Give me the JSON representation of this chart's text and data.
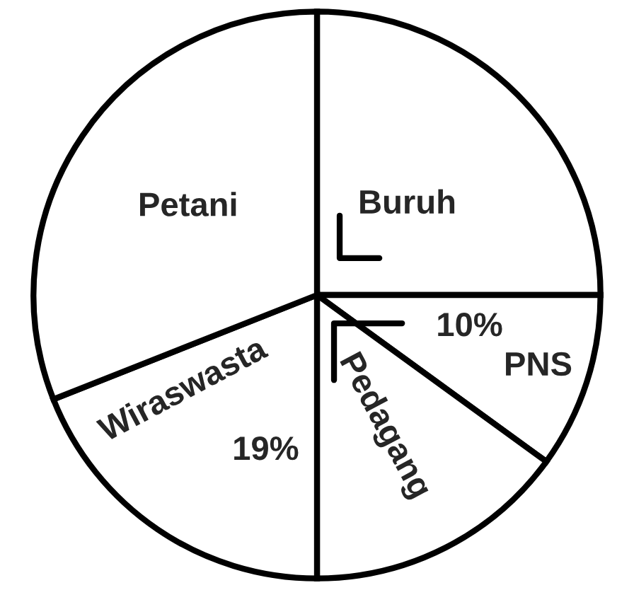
{
  "chart_data": {
    "type": "pie",
    "categories": [
      "Buruh",
      "PNS",
      "Pedagang",
      "Wiraswasta",
      "Petani"
    ],
    "values": [
      25,
      10,
      15,
      19,
      31
    ],
    "colors": [
      "#ffffff",
      "#ffffff",
      "#ffffff",
      "#ffffff",
      "#ffffff"
    ],
    "value_labels": [
      null,
      "10%",
      null,
      "19%",
      null
    ],
    "legend": false
  }
}
